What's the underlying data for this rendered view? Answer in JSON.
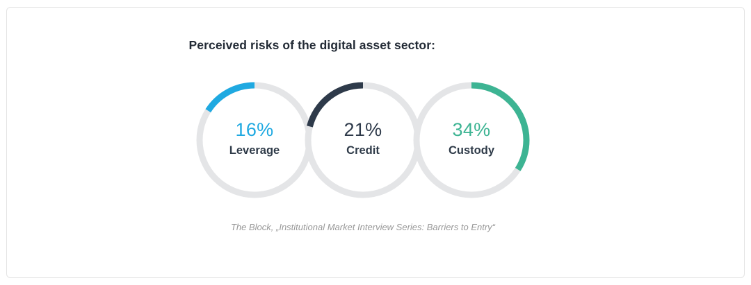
{
  "card": {
    "title": "Perceived risks of the digital asset sector:",
    "source": "The Block, „Institutional Market Interview Series: Barriers to Entry“"
  },
  "chart_data": {
    "type": "pie",
    "subtype": "donut-trio",
    "title": "Perceived risks of the digital asset sector:",
    "source": "The Block, „Institutional Market Interview Series: Barriers to Entry“",
    "ring_background_color": "#e4e5e7",
    "series": [
      {
        "label": "Leverage",
        "value": 16,
        "display": "16%",
        "color": "#1fa9e1",
        "direction": "ccw",
        "start": "top"
      },
      {
        "label": "Credit",
        "value": 21,
        "display": "21%",
        "color": "#2e3a4a",
        "direction": "ccw",
        "start": "top"
      },
      {
        "label": "Custody",
        "value": 34,
        "display": "34%",
        "color": "#3db493",
        "direction": "cw",
        "start": "top"
      }
    ]
  }
}
